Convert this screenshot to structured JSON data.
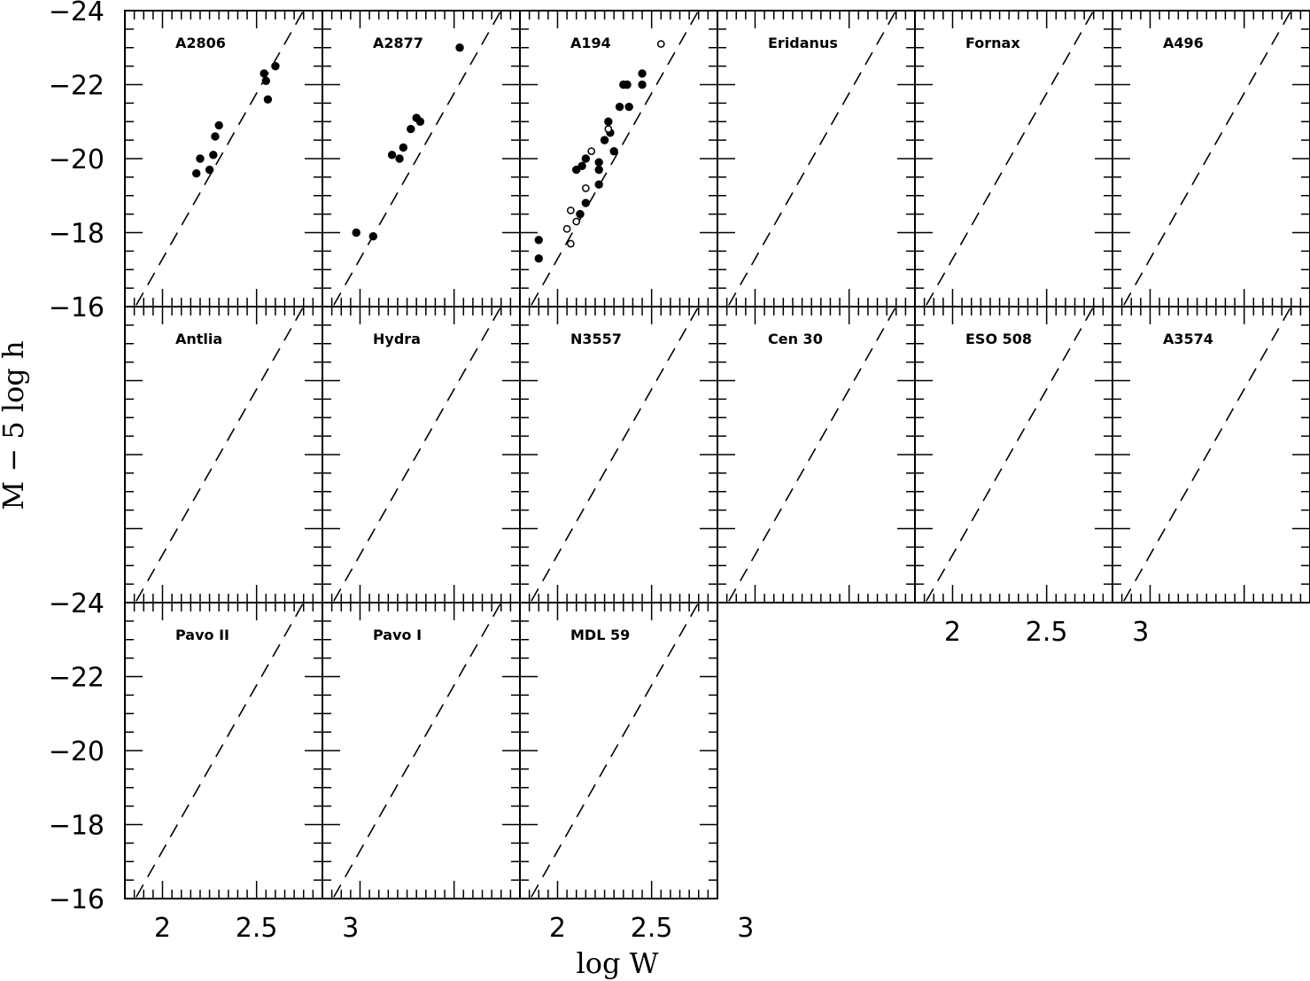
{
  "chart_data": {
    "type": "scatter",
    "title": "",
    "xlabel": "log W",
    "ylabel": "M − 5 log h",
    "xlim": [
      1.8,
      2.85
    ],
    "ylim": [
      -24,
      -16
    ],
    "x_ticks": [
      "2",
      "2.5",
      "3"
    ],
    "y_ticks": [
      "−24",
      "−22",
      "−20",
      "−18",
      "−16"
    ],
    "y_ticks_middle_row": [
      "−16",
      "−24"
    ],
    "dashed_line": {
      "x": [
        1.8,
        2.85
      ],
      "y": [
        -15.5,
        -24.9
      ]
    },
    "panels": [
      {
        "name": "A2806",
        "filled": [
          [
            2.18,
            -19.6
          ],
          [
            2.2,
            -20.0
          ],
          [
            2.25,
            -19.7
          ],
          [
            2.27,
            -20.1
          ],
          [
            2.28,
            -20.6
          ],
          [
            2.3,
            -20.9
          ],
          [
            2.55,
            -22.1
          ],
          [
            2.56,
            -21.6
          ],
          [
            2.6,
            -22.5
          ],
          [
            2.54,
            -22.3
          ]
        ],
        "open": []
      },
      {
        "name": "A2877",
        "filled": [
          [
            1.98,
            -18.0
          ],
          [
            2.07,
            -17.9
          ],
          [
            2.17,
            -20.1
          ],
          [
            2.21,
            -20.0
          ],
          [
            2.23,
            -20.3
          ],
          [
            2.27,
            -20.8
          ],
          [
            2.3,
            -21.1
          ],
          [
            2.32,
            -21.0
          ],
          [
            2.53,
            -23.0
          ]
        ],
        "open": []
      },
      {
        "name": "A194",
        "filled": [
          [
            1.9,
            -17.8
          ],
          [
            1.9,
            -17.3
          ],
          [
            2.1,
            -19.7
          ],
          [
            2.12,
            -18.5
          ],
          [
            2.13,
            -19.8
          ],
          [
            2.15,
            -18.8
          ],
          [
            2.15,
            -20.0
          ],
          [
            2.22,
            -19.7
          ],
          [
            2.22,
            -19.9
          ],
          [
            2.25,
            -20.5
          ],
          [
            2.27,
            -21.0
          ],
          [
            2.28,
            -20.7
          ],
          [
            2.3,
            -20.2
          ],
          [
            2.35,
            -22.0
          ],
          [
            2.37,
            -22.0
          ],
          [
            2.33,
            -21.4
          ],
          [
            2.38,
            -21.4
          ],
          [
            2.45,
            -22.3
          ],
          [
            2.45,
            -22.0
          ],
          [
            2.22,
            -19.3
          ]
        ],
        "open": [
          [
            2.05,
            -18.1
          ],
          [
            2.07,
            -18.6
          ],
          [
            2.07,
            -17.7
          ],
          [
            2.1,
            -18.3
          ],
          [
            2.15,
            -19.2
          ],
          [
            2.18,
            -20.2
          ],
          [
            2.27,
            -20.8
          ],
          [
            2.55,
            -23.1
          ]
        ]
      }
    ]
  },
  "panel_names": [
    "A2806",
    "A2877",
    "A194",
    "Eridanus",
    "Fornax",
    "A496",
    "Antlia",
    "Hydra",
    "N3557",
    "Cen 30",
    "ESO 508",
    "A3574",
    "Pavo II",
    "Pavo I",
    "MDL 59"
  ]
}
